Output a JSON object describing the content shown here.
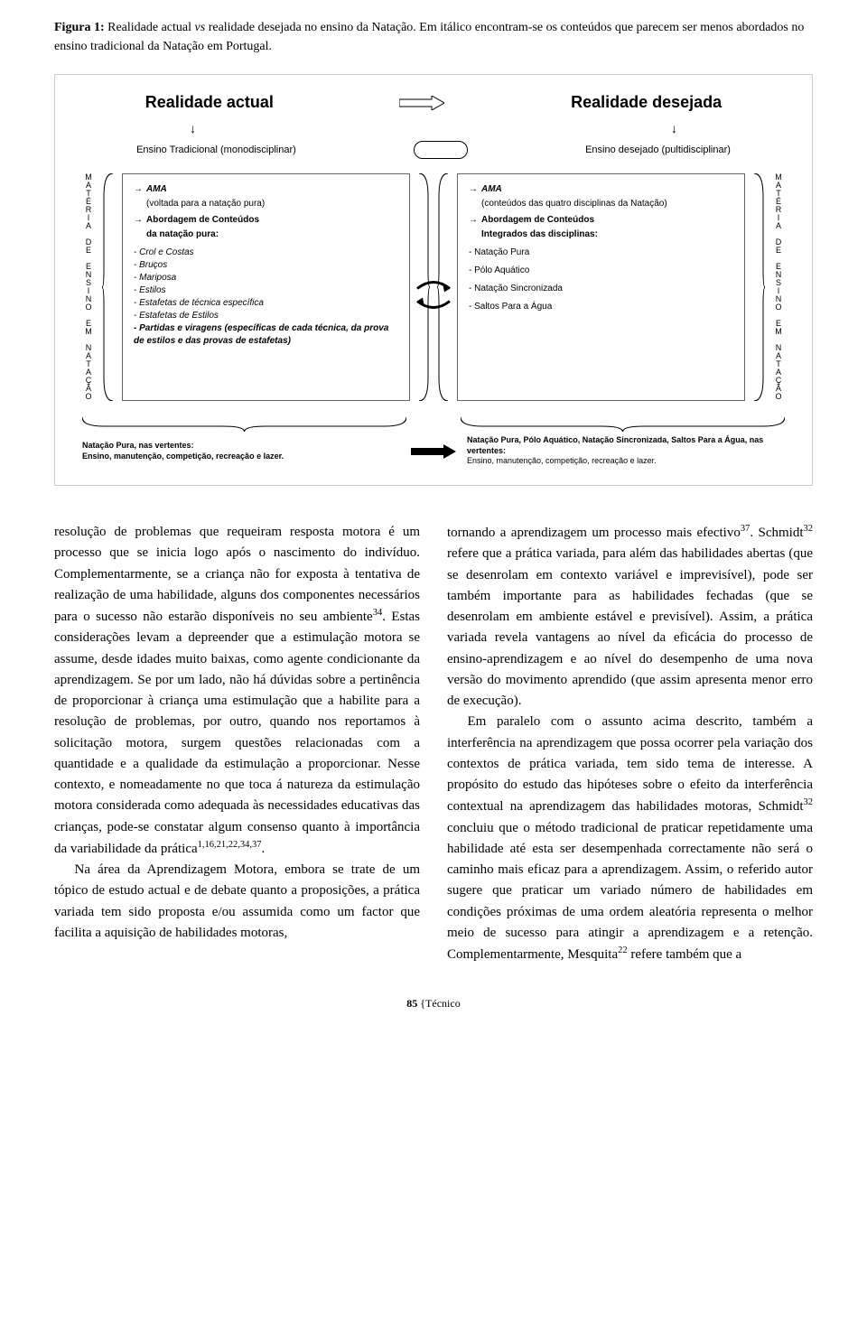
{
  "caption": {
    "label": "Figura 1:",
    "text1": " Realidade actual ",
    "vs": "vs",
    "text2": " realidade desejada no ensino da Natação. Em itálico encontram-se os conteúdos que parecem ser menos abordados no ensino tradicional da Natação em Portugal."
  },
  "diagram": {
    "title_left": "Realidade actual",
    "title_right": "Realidade desejada",
    "sub_left": "Ensino Tradicional (monodisciplinar)",
    "sub_right": "Ensino desejado (pultidisciplinar)",
    "vertical_letters": [
      "M",
      "A",
      "T",
      "É",
      "R",
      "I",
      "A",
      "",
      "D",
      "E",
      "",
      "E",
      "N",
      "S",
      "I",
      "N",
      "O",
      "",
      "E",
      "M",
      "",
      "N",
      "A",
      "T",
      "A",
      "Ç",
      "Ã",
      "O"
    ],
    "left_box": {
      "ama": "AMA",
      "ama_sub": "(voltada para a natação pura)",
      "abordagem": "Abordagem de Conteúdos",
      "abordagem_sub": "da natação pura:",
      "items": [
        "- Crol e Costas",
        "- Bruços",
        "- Mariposa",
        "- Estilos",
        "- Estafetas de técnica específica",
        "- Estafetas de Estilos",
        "- Partidas e viragens (específicas de cada técnica, da prova de estilos e das provas de estafetas)"
      ]
    },
    "right_box": {
      "ama": "AMA",
      "ama_sub": "(conteúdos das quatro disciplinas da Natação)",
      "abordagem": "Abordagem de Conteúdos",
      "abordagem_sub": "Integrados das disciplinas:",
      "items": [
        "- Natação Pura",
        "- Pólo Aquático",
        "- Natação Sincronizada",
        "- Saltos Para a Água"
      ]
    },
    "bottom_left": {
      "b": "Natação Pura, nas vertentes:",
      "t": "Ensino, manutenção, competição, recreação e lazer."
    },
    "bottom_right": {
      "b": "Natação Pura, Pólo Aquático, Natação Sincronizada, Saltos Para a Água, nas vertentes:",
      "t": "Ensino, manutenção, competição, recreação e lazer."
    }
  },
  "body": {
    "col1_p1a": "resolução de problemas que requeiram resposta motora é um processo que se inicia logo após o nascimento do indivíduo. Complementarmente, se a criança não for exposta à tentativa de realização de uma habilidade, alguns dos componentes necessários para o sucesso não estarão disponíveis no seu ambiente",
    "col1_sup1": "34",
    "col1_p1b": ". Estas considerações levam a depreender que a estimulação motora se assume, desde idades muito baixas, como agente condicionante da aprendizagem. Se por um lado, não há dúvidas sobre a pertinência de proporcionar à criança uma estimulação que a habilite para a resolução de problemas, por outro, quando nos reportamos à solicitação motora, surgem questões relacionadas com a quantidade e a qualidade da estimulação a proporcionar. Nesse contexto, e nomeadamente no que toca á natureza da estimulação motora considerada como adequada às necessidades educativas das crianças, pode-se constatar algum consenso quanto à importância da variabilidade da prática",
    "col1_sup2": "1,16,21,22,34,37",
    "col1_p1c": ".",
    "col1_p2": "Na área da Aprendizagem Motora, embora se trate de um tópico de estudo actual e de debate quanto a proposições, a prática variada tem sido proposta e/ou assumida como um factor que facilita a aquisição de habilidades motoras,",
    "col2_p1a": "tornando a aprendizagem um processo mais efectivo",
    "col2_sup1": "37",
    "col2_p1b": ". Schmidt",
    "col2_sup2": "32",
    "col2_p1c": " refere que a prática variada, para além das habilidades abertas (que se desenrolam em contexto variável e imprevisível), pode ser também importante para as habilidades fechadas (que se desenrolam em ambiente estável e previsível). Assim, a prática variada revela vantagens ao nível da eficácia do processo de ensino-aprendizagem e ao nível do desempenho de uma nova versão do movimento aprendido (que assim apresenta menor erro de execução).",
    "col2_p2a": "Em paralelo com o assunto acima descrito, também a interferência na aprendizagem que possa ocorrer pela variação dos contextos de prática variada, tem sido tema de interesse. A propósito do estudo das hipóteses sobre o efeito da interferência contextual na aprendizagem das habilidades motoras, Schmidt",
    "col2_sup3": "32",
    "col2_p2b": " concluiu que o método tradicional de praticar repetidamente uma habilidade até esta ser desempenhada correctamente não será o caminho mais eficaz para a aprendizagem. Assim, o referido autor sugere que praticar um variado número de habilidades em condições próximas de uma ordem aleatória representa o melhor meio de sucesso para atingir a aprendizagem e a retenção. Complementarmente, Mesquita",
    "col2_sup4": "22",
    "col2_p2c": " refere também que a"
  },
  "footer": {
    "page": "85",
    "section": " {Técnico"
  }
}
